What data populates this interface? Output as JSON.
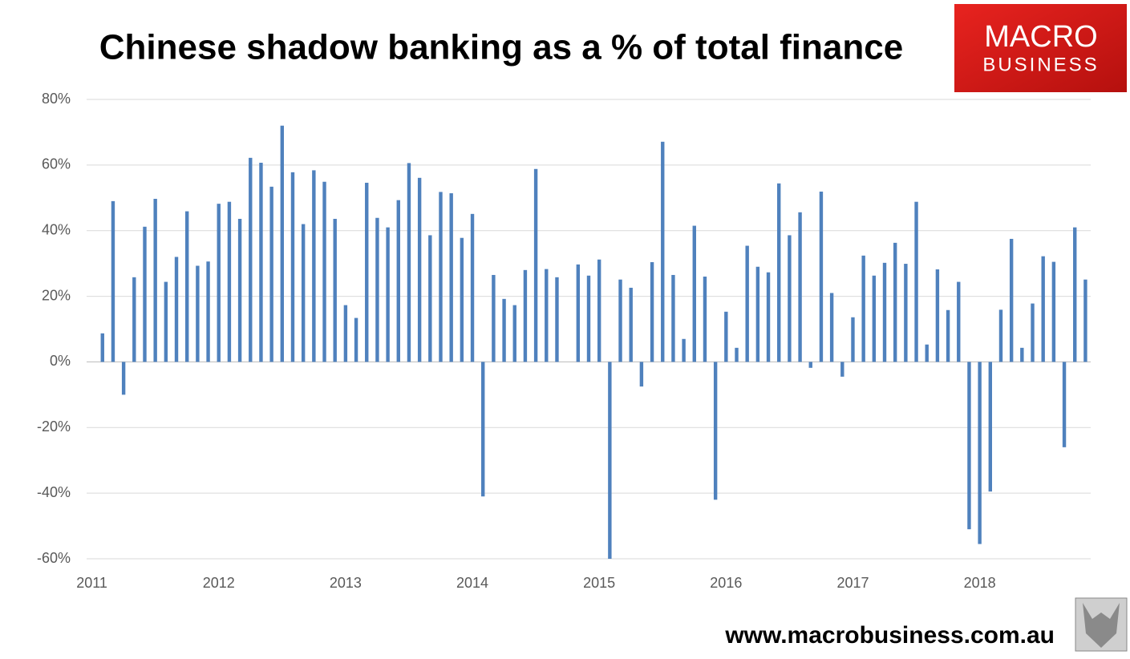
{
  "chart_data": {
    "type": "bar",
    "title": "Chinese shadow banking as a % of total finance",
    "logo": [
      "MACRO",
      "BUSINESS"
    ],
    "footer": "www.macrobusiness.com.au",
    "categories": [
      "2011",
      null,
      null,
      null,
      null,
      null,
      null,
      null,
      null,
      null,
      null,
      null,
      "2012",
      null,
      null,
      null,
      null,
      null,
      null,
      null,
      null,
      null,
      null,
      null,
      "2013",
      null,
      null,
      null,
      null,
      null,
      null,
      null,
      null,
      null,
      null,
      null,
      "2014",
      null,
      null,
      null,
      null,
      null,
      null,
      null,
      null,
      null,
      null,
      null,
      "2015",
      null,
      null,
      null,
      null,
      null,
      null,
      null,
      null,
      null,
      null,
      null,
      "2016",
      null,
      null,
      null,
      null,
      null,
      null,
      null,
      null,
      null,
      null,
      null,
      "2017",
      null,
      null,
      null,
      null,
      null,
      null,
      null,
      null,
      null,
      null,
      null,
      "2018",
      null,
      null,
      null,
      null,
      null,
      null,
      null,
      null,
      null,
      null
    ],
    "values": [
      null,
      8.7,
      49,
      -10,
      25.8,
      41.2,
      49.7,
      24.4,
      32,
      45.9,
      29.3,
      30.6,
      48.2,
      48.8,
      43.6,
      62.2,
      60.7,
      53.4,
      72,
      57.8,
      42,
      58.4,
      54.9,
      43.6,
      17.3,
      13.4,
      54.6,
      43.9,
      41,
      49.3,
      60.6,
      56.1,
      38.6,
      51.8,
      51.4,
      37.8,
      45.1,
      -41,
      26.5,
      19.2,
      17.3,
      28,
      58.8,
      28.3,
      25.8,
      null,
      29.7,
      26.3,
      31.2,
      -60,
      25.1,
      22.6,
      -7.5,
      30.4,
      67.1,
      26.5,
      7,
      41.5,
      26,
      -42,
      15.3,
      4.3,
      35.4,
      29,
      27.3,
      54.4,
      38.6,
      45.6,
      -1.8,
      51.9,
      21,
      -4.5,
      13.6,
      32.4,
      26.3,
      30.2,
      36.3,
      29.9,
      48.8,
      5.3,
      28.2,
      15.8,
      24.4,
      -51,
      -55.5,
      -39.5,
      15.9,
      37.5,
      4.3,
      17.8,
      32.2,
      30.5,
      -26,
      41,
      25.1
    ],
    "color": "#4f81bd",
    "ylim": [
      -60,
      80
    ],
    "yticks": [
      {
        "value": -60,
        "label": "-60%"
      },
      {
        "value": -40,
        "label": "-40%"
      },
      {
        "value": -20,
        "label": "-20%"
      },
      {
        "value": 0,
        "label": "0%"
      },
      {
        "value": 20,
        "label": "20%"
      },
      {
        "value": 40,
        "label": "40%"
      },
      {
        "value": 60,
        "label": "60%"
      },
      {
        "value": 80,
        "label": "80%"
      }
    ],
    "grid": true
  }
}
